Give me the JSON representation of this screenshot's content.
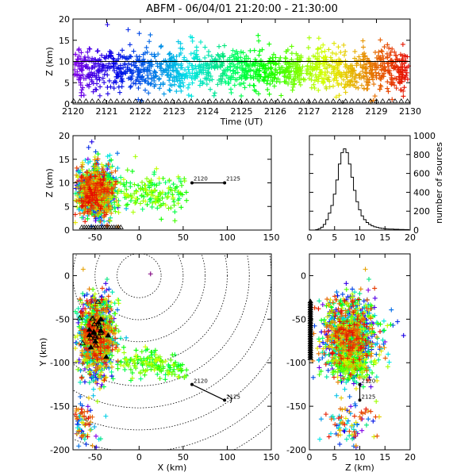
{
  "title": "ABFM - 06/04/01 21:20:00 - 21:30:00",
  "chart_data": [
    {
      "id": "time-height",
      "type": "scatter",
      "xlabel": "Time (UT)",
      "ylabel": "Z (km)",
      "xlim": [
        2120,
        2130
      ],
      "ylim": [
        0,
        20
      ],
      "xticks": [
        "2120",
        "2121",
        "2122",
        "2123",
        "2124",
        "2125",
        "2126",
        "2127",
        "2128",
        "2129",
        "2130"
      ],
      "yticks": [
        "0",
        "5",
        "10",
        "15",
        "20"
      ],
      "reference_line_z": 10,
      "color_scale": "rainbow by time (purple at 2120 to red at 2130)",
      "marker": "+",
      "ground_markers": "open triangles at Z = 0"
    },
    {
      "id": "x-height",
      "type": "scatter",
      "xlabel": "",
      "ylabel": "Z (km)",
      "xlim": [
        -75,
        150
      ],
      "ylim": [
        0,
        20
      ],
      "xticks": [
        "-50",
        "0",
        "50",
        "100",
        "150"
      ],
      "yticks": [
        "0",
        "5",
        "10",
        "15",
        "20"
      ],
      "annotations": [
        {
          "text": "2120",
          "x": 60,
          "y": 10
        },
        {
          "text": "2125",
          "x": 97,
          "y": 10
        }
      ]
    },
    {
      "id": "altitude-histogram",
      "type": "line",
      "ylabel_right": "number of sources",
      "xlim": [
        0,
        20
      ],
      "ylim": [
        0,
        1000
      ],
      "xticks": [
        "0",
        "5",
        "10",
        "15",
        "20"
      ],
      "yticks": [
        "0",
        "200",
        "400",
        "600",
        "800",
        "1000"
      ],
      "x": [
        1.5,
        2.0,
        2.5,
        3.0,
        3.5,
        4.0,
        4.5,
        5.0,
        5.5,
        6.0,
        6.5,
        7.0,
        7.5,
        8.0,
        8.5,
        9.0,
        9.5,
        10.0,
        10.5,
        11.0,
        11.5,
        12.0,
        12.5,
        13.0,
        13.5,
        14.0,
        14.5,
        15.0,
        15.5,
        16.0,
        17.0,
        18.0,
        19.0
      ],
      "values": [
        5,
        15,
        30,
        60,
        110,
        180,
        260,
        380,
        530,
        700,
        820,
        860,
        820,
        700,
        560,
        420,
        300,
        215,
        150,
        110,
        80,
        60,
        45,
        35,
        28,
        22,
        18,
        15,
        12,
        10,
        8,
        6,
        5
      ]
    },
    {
      "id": "plan-view",
      "type": "scatter",
      "xlabel": "X (km)",
      "ylabel": "Y (km)",
      "xlim": [
        -75,
        150
      ],
      "ylim": [
        -200,
        25
      ],
      "xticks": [
        "-50",
        "0",
        "50",
        "100",
        "150"
      ],
      "yticks": [
        "-200",
        "-150",
        "-100",
        "-50",
        "0"
      ],
      "range_rings_km": [
        25,
        50,
        75,
        100,
        125,
        150,
        175,
        200,
        225
      ],
      "annotations": [
        {
          "text": "2120",
          "x": 60,
          "y": -125
        },
        {
          "text": "2125",
          "x": 97,
          "y": -143
        }
      ]
    },
    {
      "id": "height-y",
      "type": "scatter",
      "xlabel": "Z (km)",
      "ylabel": "",
      "xlim": [
        0,
        20
      ],
      "ylim": [
        -200,
        25
      ],
      "xticks": [
        "0",
        "5",
        "10",
        "15",
        "20"
      ],
      "yticks": [
        "-200",
        "-150",
        "-100",
        "-50",
        "0"
      ],
      "annotations": [
        {
          "text": "2120",
          "x": 10,
          "y": -125
        },
        {
          "text": "2125",
          "x": 10,
          "y": -143
        }
      ]
    }
  ]
}
